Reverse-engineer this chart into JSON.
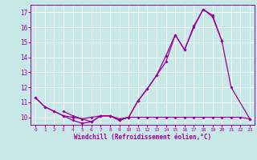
{
  "background_color": "#c8e8e8",
  "grid_color": "#ffffff",
  "line_color": "#990099",
  "xlabel": "Windchill (Refroidissement éolien,°C)",
  "ylabel_values": [
    10,
    11,
    12,
    13,
    14,
    15,
    16,
    17
  ],
  "xlabel_ticks": [
    0,
    1,
    2,
    3,
    4,
    5,
    6,
    7,
    8,
    9,
    10,
    11,
    12,
    13,
    14,
    15,
    16,
    17,
    18,
    19,
    20,
    21,
    22,
    23
  ],
  "series1": [
    11.3,
    10.7,
    10.4,
    10.1,
    9.8,
    9.6,
    9.7,
    10.1,
    10.1,
    9.8,
    10.0,
    11.1,
    11.9,
    12.8,
    13.7,
    15.5,
    14.5,
    16.1,
    17.2,
    16.8,
    15.1,
    null,
    null,
    null
  ],
  "series2": [
    11.3,
    10.7,
    10.4,
    10.1,
    10.0,
    9.9,
    10.0,
    10.1,
    10.1,
    9.8,
    10.0,
    10.0,
    10.0,
    10.0,
    10.0,
    10.0,
    10.0,
    10.0,
    10.0,
    10.0,
    10.0,
    10.0,
    10.0,
    9.9
  ],
  "series3": [
    null,
    null,
    null,
    10.4,
    10.1,
    9.9,
    9.7,
    10.1,
    10.1,
    9.9,
    10.0,
    11.1,
    11.9,
    12.8,
    14.1,
    15.5,
    14.5,
    16.0,
    17.2,
    16.7,
    15.1,
    12.0,
    null,
    9.9
  ],
  "ylim": [
    9.5,
    17.5
  ],
  "xlim": [
    -0.5,
    23.5
  ]
}
